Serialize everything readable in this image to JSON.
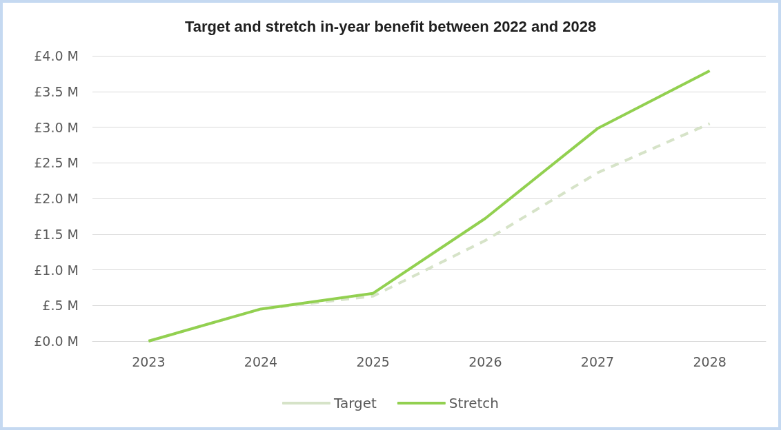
{
  "chart_data": {
    "type": "line",
    "title": "Target and stretch in-year benefit between 2022 and 2028",
    "categories": [
      "2023",
      "2024",
      "2025",
      "2026",
      "2027",
      "2028"
    ],
    "series": [
      {
        "name": "Target",
        "color": "#d6e3c8",
        "line_style": "dashed",
        "values": [
          0,
          0.45,
          0.63,
          1.41,
          2.36,
          3.05
        ]
      },
      {
        "name": "Stretch",
        "color": "#92d050",
        "line_style": "solid",
        "values": [
          0,
          0.45,
          0.67,
          1.72,
          2.98,
          3.79
        ]
      }
    ],
    "ylim": [
      0,
      4
    ],
    "yticks": [
      {
        "value": 0,
        "label": "£0.0 M"
      },
      {
        "value": 0.5,
        "label": "£.5 M"
      },
      {
        "value": 1,
        "label": "£1.0 M"
      },
      {
        "value": 1.5,
        "label": "£1.5 M"
      },
      {
        "value": 2,
        "label": "£2.0 M"
      },
      {
        "value": 2.5,
        "label": "£2.5 M"
      },
      {
        "value": 3,
        "label": "£3.0 M"
      },
      {
        "value": 3.5,
        "label": "£3.5 M"
      },
      {
        "value": 4,
        "label": "£4.0 M"
      }
    ],
    "grid": "y",
    "legend": "bottom",
    "marker": "none"
  }
}
